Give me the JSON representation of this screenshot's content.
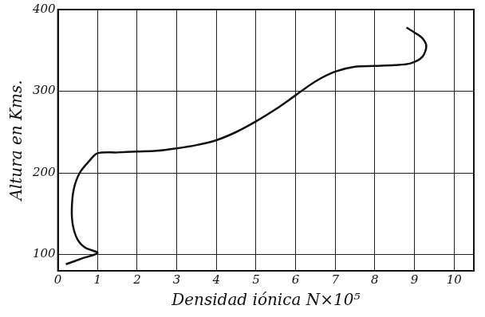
{
  "chart_data": {
    "type": "line",
    "x_label": "Densidad iónica N×10⁵",
    "y_label": "Altura en Kms.",
    "x": [
      0.2,
      0.6,
      1.0,
      0.7,
      0.5,
      0.38,
      0.35,
      0.4,
      0.55,
      0.8,
      1.0,
      1.5,
      2.0,
      2.5,
      3.0,
      3.5,
      4.0,
      4.5,
      5.0,
      5.5,
      6.0,
      6.5,
      7.0,
      7.5,
      8.0,
      8.5,
      8.9,
      9.2,
      9.3,
      9.2,
      9.0,
      8.8
    ],
    "values": [
      88,
      95,
      102,
      108,
      118,
      135,
      155,
      180,
      200,
      215,
      224,
      225,
      226,
      227,
      230,
      234,
      240,
      250,
      263,
      278,
      295,
      312,
      324,
      330,
      331,
      332,
      334,
      342,
      355,
      365,
      372,
      378
    ],
    "color": "#111111",
    "marker": "none",
    "line_style": "solid",
    "xlim": [
      0,
      10.5
    ],
    "xticks": [
      0,
      1,
      2,
      3,
      4,
      5,
      6,
      7,
      8,
      9,
      10
    ],
    "ylim": [
      80,
      400
    ],
    "yticks": [
      100,
      200,
      300,
      400
    ],
    "grid": true
  }
}
